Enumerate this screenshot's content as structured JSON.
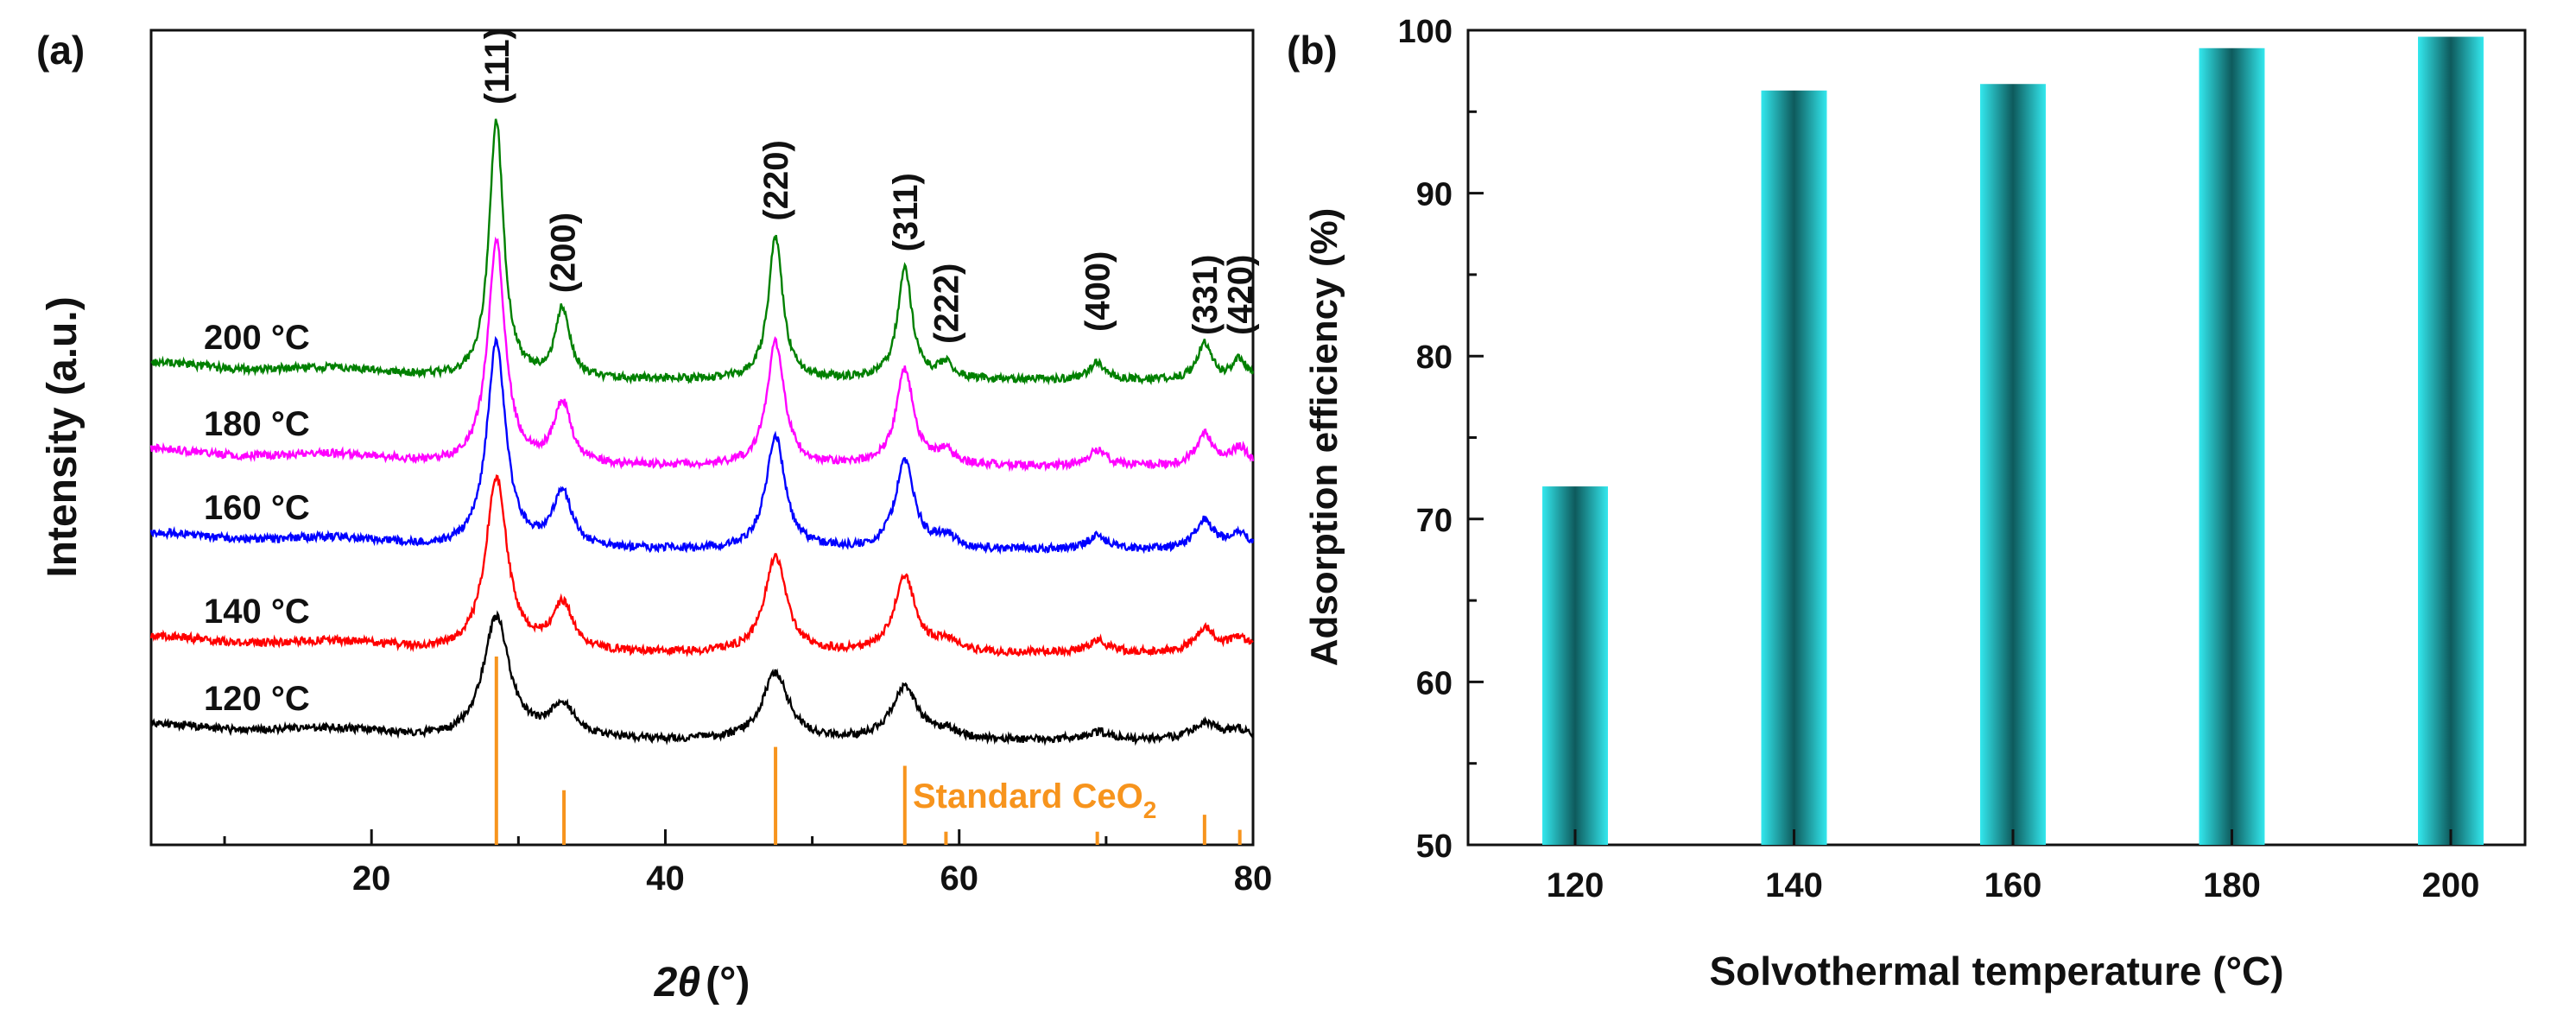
{
  "chart_data": [
    {
      "type": "line",
      "panel_label": "(a)",
      "xlabel_symbol": "2θ",
      "xlabel_unit": "(°)",
      "ylabel": "Intensity (a.u.)",
      "xlim": [
        5,
        80
      ],
      "xticks": [
        20,
        40,
        60,
        80
      ],
      "grid": false,
      "series": [
        {
          "name": "120 °C",
          "color": "#000000",
          "baseline": 0.0,
          "peak_scale": 0.55
        },
        {
          "name": "140 °C",
          "color": "#ff0000",
          "baseline": 1.0,
          "peak_scale": 0.78
        },
        {
          "name": "160 °C",
          "color": "#0000ff",
          "baseline": 2.0,
          "peak_scale": 0.92
        },
        {
          "name": "180 °C",
          "color": "#ff00ff",
          "baseline": 3.0,
          "peak_scale": 1.0
        },
        {
          "name": "200 °C",
          "color": "#008000",
          "baseline": 4.0,
          "peak_scale": 1.15
        }
      ],
      "peaks": [
        {
          "hkl": "(111)",
          "position": 28.5,
          "relative_intensity": 1.0
        },
        {
          "hkl": "(200)",
          "position": 33.0,
          "relative_intensity": 0.27
        },
        {
          "hkl": "(220)",
          "position": 47.5,
          "relative_intensity": 0.55
        },
        {
          "hkl": "(311)",
          "position": 56.3,
          "relative_intensity": 0.43
        },
        {
          "hkl": "(222)",
          "position": 59.1,
          "relative_intensity": 0.06
        },
        {
          "hkl": "(400)",
          "position": 69.4,
          "relative_intensity": 0.07
        },
        {
          "hkl": "(331)",
          "position": 76.7,
          "relative_intensity": 0.14
        },
        {
          "hkl": "(420)",
          "position": 79.1,
          "relative_intensity": 0.08
        }
      ],
      "reference": {
        "label": "Standard CeO",
        "subscript": "2",
        "color": "#f7941d",
        "lines": [
          {
            "position": 28.5,
            "intensity": 100
          },
          {
            "position": 33.1,
            "intensity": 29
          },
          {
            "position": 47.5,
            "intensity": 52
          },
          {
            "position": 56.3,
            "intensity": 42
          },
          {
            "position": 59.1,
            "intensity": 7
          },
          {
            "position": 69.4,
            "intensity": 7
          },
          {
            "position": 76.7,
            "intensity": 16
          },
          {
            "position": 79.1,
            "intensity": 8
          }
        ]
      }
    },
    {
      "type": "bar",
      "panel_label": "(b)",
      "categories": [
        "120",
        "140",
        "160",
        "180",
        "200"
      ],
      "values": [
        72.0,
        96.3,
        96.7,
        98.9,
        99.6
      ],
      "xlabel": "Solvothermal temperature (°C)",
      "ylabel": "Adsorption efficiency (%)",
      "ylim": [
        50,
        100
      ],
      "yticks": [
        50,
        60,
        70,
        80,
        90,
        100
      ],
      "bar_color_edge": "#33e8ee",
      "bar_color_center": "#0e5a5c",
      "grid": false
    }
  ]
}
